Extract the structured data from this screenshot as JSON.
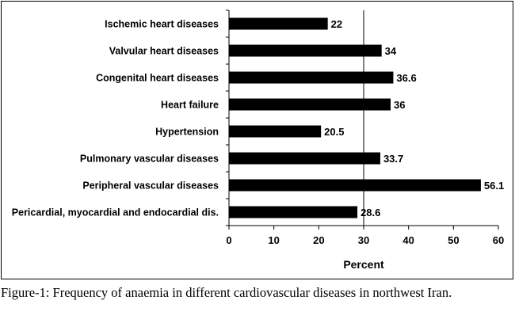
{
  "chart_data": {
    "type": "bar",
    "orientation": "horizontal",
    "categories": [
      "Ischemic heart diseases",
      "Valvular heart diseases",
      "Congenital heart diseases",
      "Heart failure",
      "Hypertension",
      "Pulmonary vascular diseases",
      "Peripheral vascular diseases",
      "Pericardial, myocardial and endocardial dis."
    ],
    "values": [
      22,
      34,
      36.6,
      36,
      20.5,
      33.7,
      56.1,
      28.6
    ],
    "value_labels": [
      "22",
      "34",
      "36.6",
      "36",
      "20.5",
      "33.7",
      "56.1",
      "28.6"
    ],
    "xlabel": "Percent",
    "ylabel": "",
    "xlim": [
      0,
      60
    ],
    "xticks": [
      0,
      10,
      20,
      30,
      40,
      50,
      60
    ],
    "reference_line": 30,
    "bar_color": "#000000"
  },
  "caption": "Figure-1: Frequency of anaemia in different cardiovascular diseases in northwest Iran."
}
